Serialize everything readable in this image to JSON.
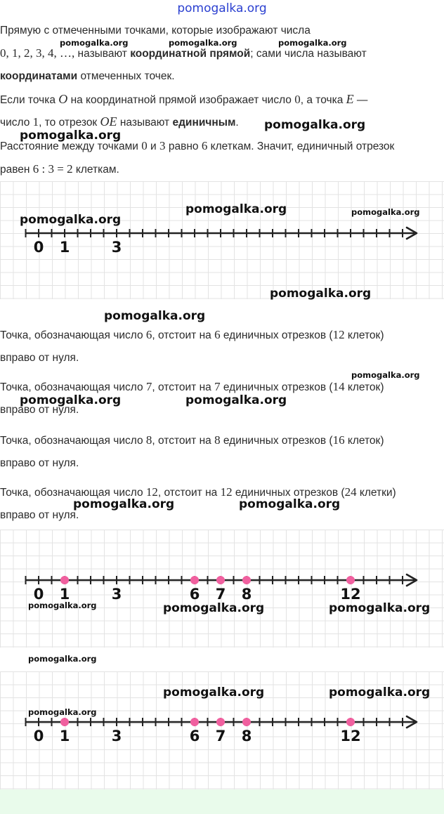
{
  "site_title": "pomogalka.org",
  "watermark": "pomogalka.org",
  "paragraph1": {
    "l1": "Прямую с отмеченными точками, которые изображают числа",
    "l2_math": "0,  1,  2,  3,  4,  …,",
    "l2_a": " называют ",
    "l2_bold": "координатной прямой",
    "l2_b": "; сами числа называют",
    "l3_bold": "координатами",
    "l3_a": " отмеченных точек."
  },
  "paragraph2": {
    "l1_a": "Если точка ",
    "l1_O": "O",
    "l1_b": " на координатной прямой изображает число ",
    "l1_zero": "0",
    "l1_c": ", а точка ",
    "l1_E": "E",
    "l1_dash": " —",
    "l2_a": "число ",
    "l2_one": "1",
    "l2_b": ", то отрезок ",
    "l2_OE": "OE",
    "l2_c": " называют ",
    "l2_bold": "единичным",
    "l2_d": "."
  },
  "paragraph3": {
    "l1_a": "Расстояние между точками ",
    "l1_zero": "0",
    "l1_b": " и ",
    "l1_three": "3",
    "l1_c": " равно ",
    "l1_six": "6",
    "l1_d": " клеткам. Значит, единичный отрезок",
    "l2_a": "равен ",
    "l2_math": "6 : 3 = 2",
    "l2_b": " клеткам."
  },
  "statements": [
    {
      "a": "Точка, обозначающая число ",
      "n1": "6",
      "b": ", отстоит на ",
      "n2": "6",
      "c": " единичных отрезков (",
      "n3": "12",
      "d": " клеток)",
      "l2": "вправо от нуля."
    },
    {
      "a": "Точка, обозначающая число ",
      "n1": "7",
      "b": ", отстоит на ",
      "n2": "7",
      "c": " единичных отрезков (",
      "n3": "14",
      "d": " клеток)",
      "l2": "вправо от нуля."
    },
    {
      "a": "Точка, обозначающая число ",
      "n1": "8",
      "b": ", отстоит на ",
      "n2": "8",
      "c": " единичных отрезков (",
      "n3": "16",
      "d": " клеток)",
      "l2": "вправо от нуля."
    },
    {
      "a": "Точка, обозначающая число ",
      "n1": "12",
      "b": ", отстоит на ",
      "n2": "12",
      "c": " единичных отрезков (",
      "n3": "24",
      "d": " клетки)",
      "l2": "вправо от нуля."
    }
  ],
  "number_lines": [
    {
      "labels": [
        "0",
        "1",
        "3"
      ],
      "label_values": [
        0,
        1,
        3
      ],
      "points": []
    },
    {
      "labels": [
        "0",
        "1",
        "3",
        "6",
        "7",
        "8",
        "12"
      ],
      "label_values": [
        0,
        1,
        3,
        6,
        7,
        8,
        12
      ],
      "points": [
        1,
        6,
        7,
        8,
        12
      ]
    },
    {
      "labels": [
        "0",
        "1",
        "3",
        "6",
        "7",
        "8",
        "12"
      ],
      "label_values": [
        0,
        1,
        3,
        6,
        7,
        8,
        12
      ],
      "points": [
        1,
        6,
        7,
        8,
        12
      ]
    }
  ],
  "colors": {
    "point": "#f0609f",
    "line": "#222222",
    "grid": "#e3e3e3",
    "title": "#2a3fd0",
    "bottom_band": "#e9fbeb"
  }
}
